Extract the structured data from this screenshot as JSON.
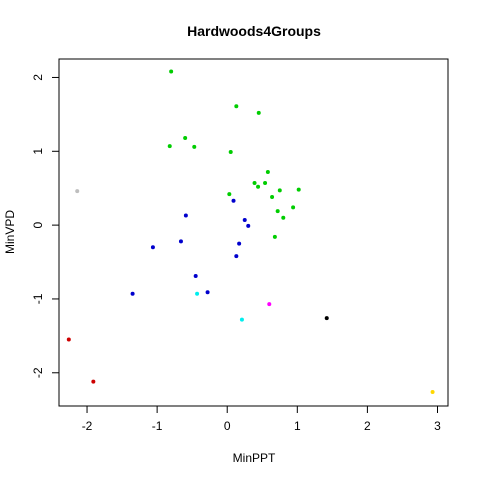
{
  "chart_data": {
    "type": "scatter",
    "title": "Hardwoods4Groups",
    "xlabel": "MinPPT",
    "ylabel": "MinVPD",
    "xlim": [
      -2.4,
      3.15
    ],
    "ylim": [
      -2.45,
      2.25
    ],
    "x_ticks": [
      -2,
      -1,
      0,
      1,
      2,
      3
    ],
    "y_ticks": [
      -2,
      -1,
      0,
      1,
      2
    ],
    "grid": false,
    "legend": "none",
    "points": [
      {
        "x": -0.8,
        "y": 2.08,
        "color": "#00cd00"
      },
      {
        "x": 0.13,
        "y": 1.61,
        "color": "#00cd00"
      },
      {
        "x": 0.45,
        "y": 1.52,
        "color": "#00cd00"
      },
      {
        "x": -0.6,
        "y": 1.18,
        "color": "#00cd00"
      },
      {
        "x": -0.82,
        "y": 1.07,
        "color": "#00cd00"
      },
      {
        "x": -0.47,
        "y": 1.06,
        "color": "#00cd00"
      },
      {
        "x": 0.05,
        "y": 0.99,
        "color": "#00cd00"
      },
      {
        "x": 0.58,
        "y": 0.72,
        "color": "#00cd00"
      },
      {
        "x": 0.54,
        "y": 0.57,
        "color": "#00cd00"
      },
      {
        "x": 0.39,
        "y": 0.57,
        "color": "#00cd00"
      },
      {
        "x": 0.44,
        "y": 0.52,
        "color": "#00cd00"
      },
      {
        "x": 0.75,
        "y": 0.47,
        "color": "#00cd00"
      },
      {
        "x": 1.02,
        "y": 0.48,
        "color": "#00cd00"
      },
      {
        "x": 0.03,
        "y": 0.42,
        "color": "#00cd00"
      },
      {
        "x": 0.64,
        "y": 0.38,
        "color": "#00cd00"
      },
      {
        "x": 0.94,
        "y": 0.24,
        "color": "#00cd00"
      },
      {
        "x": 0.72,
        "y": 0.19,
        "color": "#00cd00"
      },
      {
        "x": 0.8,
        "y": 0.1,
        "color": "#00cd00"
      },
      {
        "x": 0.68,
        "y": -0.16,
        "color": "#00cd00"
      },
      {
        "x": -2.14,
        "y": 0.46,
        "color": "#bebebe"
      },
      {
        "x": 0.09,
        "y": 0.33,
        "color": "#0000cd"
      },
      {
        "x": -0.59,
        "y": 0.13,
        "color": "#0000cd"
      },
      {
        "x": 0.25,
        "y": 0.07,
        "color": "#0000cd"
      },
      {
        "x": 0.3,
        "y": -0.01,
        "color": "#0000cd"
      },
      {
        "x": -0.66,
        "y": -0.22,
        "color": "#0000cd"
      },
      {
        "x": 0.17,
        "y": -0.25,
        "color": "#0000cd"
      },
      {
        "x": -1.06,
        "y": -0.3,
        "color": "#0000cd"
      },
      {
        "x": 0.13,
        "y": -0.42,
        "color": "#0000cd"
      },
      {
        "x": -0.45,
        "y": -0.69,
        "color": "#0000cd"
      },
      {
        "x": -1.35,
        "y": -0.93,
        "color": "#0000cd"
      },
      {
        "x": -0.28,
        "y": -0.91,
        "color": "#0000cd"
      },
      {
        "x": -0.43,
        "y": -0.93,
        "color": "#00eeee"
      },
      {
        "x": 0.21,
        "y": -1.28,
        "color": "#00eeee"
      },
      {
        "x": 0.6,
        "y": -1.07,
        "color": "#ff00ff"
      },
      {
        "x": 1.42,
        "y": -1.26,
        "color": "#000000"
      },
      {
        "x": -2.26,
        "y": -1.55,
        "color": "#cd0000"
      },
      {
        "x": -1.91,
        "y": -2.12,
        "color": "#cd0000"
      },
      {
        "x": 2.93,
        "y": -2.26,
        "color": "#ffd700"
      }
    ]
  }
}
